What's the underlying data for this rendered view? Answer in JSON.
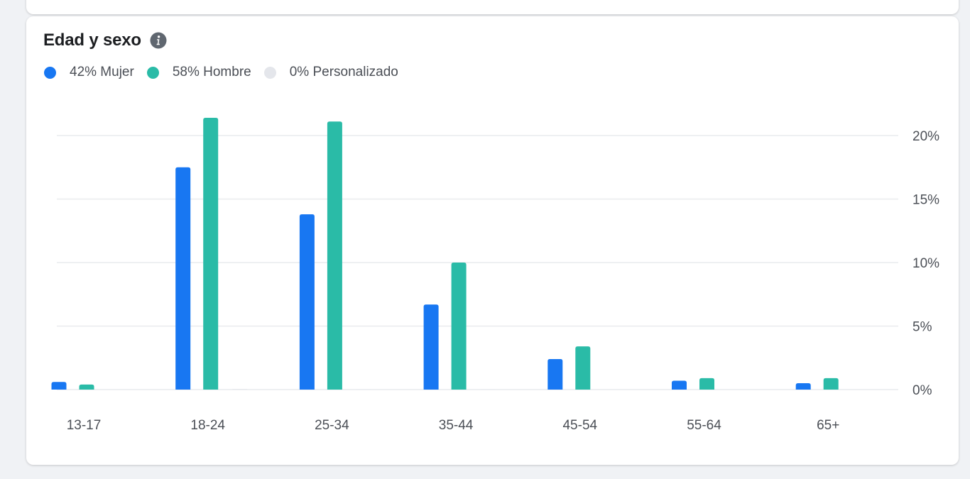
{
  "card": {
    "title": "Edad y sexo",
    "info_icon": "info-icon"
  },
  "legend": [
    {
      "label": "42% Mujer",
      "color": "#1877f2"
    },
    {
      "label": "58% Hombre",
      "color": "#2abba7"
    },
    {
      "label": "0% Personalizado",
      "color": "#e4e6eb"
    }
  ],
  "chart_data": {
    "type": "bar",
    "categories": [
      "13-17",
      "18-24",
      "25-34",
      "35-44",
      "45-54",
      "55-64",
      "65+"
    ],
    "series": [
      {
        "name": "42% Mujer",
        "color": "#1877f2",
        "values": [
          0.6,
          17.5,
          13.8,
          6.7,
          2.4,
          0.7,
          0.5
        ]
      },
      {
        "name": "58% Hombre",
        "color": "#2abba7",
        "values": [
          0.4,
          21.4,
          21.1,
          10.0,
          3.4,
          0.9,
          0.9
        ]
      },
      {
        "name": "0% Personalizado",
        "color": "#e4e6eb",
        "values": [
          0,
          0.05,
          0.02,
          0.02,
          0,
          0,
          0
        ]
      }
    ],
    "yticks": [
      {
        "value": 0,
        "label": "0%"
      },
      {
        "value": 5,
        "label": "5%"
      },
      {
        "value": 10,
        "label": "10%"
      },
      {
        "value": 15,
        "label": "15%"
      },
      {
        "value": 20,
        "label": "20%"
      }
    ],
    "ylim": [
      0,
      20
    ],
    "grid": true,
    "y_axis_side": "right",
    "legend_position": "top-left"
  }
}
